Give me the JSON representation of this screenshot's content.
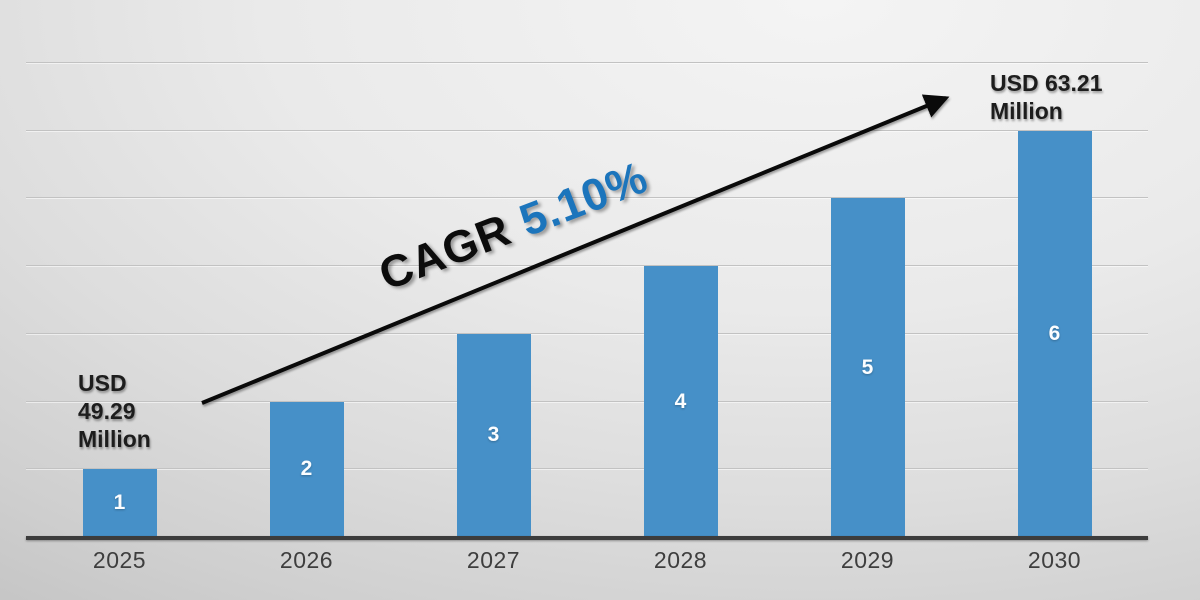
{
  "chart_data": {
    "type": "bar",
    "title": "",
    "categories": [
      "2025",
      "2026",
      "2027",
      "2028",
      "2029",
      "2030"
    ],
    "values": [
      1,
      2,
      3,
      4,
      5,
      6
    ],
    "bar_labels": [
      "1",
      "2",
      "3",
      "4",
      "5",
      "6"
    ],
    "ylim": [
      0,
      7
    ],
    "gridline_values": [
      1,
      2,
      3,
      4,
      5,
      6,
      7
    ],
    "grid": "horizontal",
    "legend": "none",
    "xlabel": "",
    "ylabel": "",
    "bar_color": "#4690c8",
    "annotations": {
      "start_value": {
        "text": "USD 49.29 Million",
        "lines": "USD\n49.29\nMillion"
      },
      "end_value": {
        "text": "USD 63.21 Million",
        "lines": "USD 63.21\nMillion"
      },
      "cagr_prefix": "CAGR",
      "cagr_value": "5.10%",
      "cagr_value_color": "#1c75bc",
      "arrow": "diagonal growth arrow from 2025 bar to 2030 label"
    }
  }
}
